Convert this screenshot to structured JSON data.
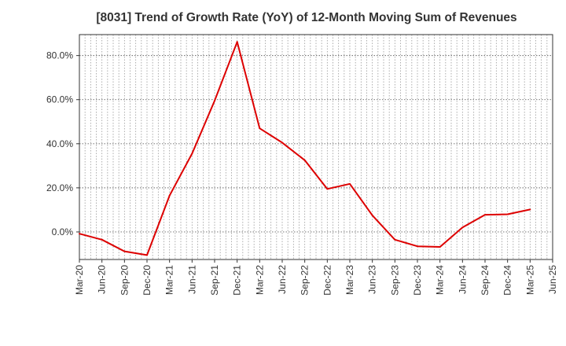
{
  "chart_data": {
    "type": "line",
    "title": "[8031]  Trend of Growth Rate (YoY) of 12-Month Moving Sum of Revenues",
    "xlabel": "",
    "ylabel": "",
    "x": [
      "Mar-20",
      "Jun-20",
      "Sep-20",
      "Dec-20",
      "Mar-21",
      "Jun-21",
      "Sep-21",
      "Dec-21",
      "Mar-22",
      "Jun-22",
      "Sep-22",
      "Dec-22",
      "Mar-23",
      "Jun-23",
      "Sep-23",
      "Dec-23",
      "Mar-24",
      "Jun-24",
      "Sep-24",
      "Dec-24",
      "Mar-25",
      "Jun-25"
    ],
    "series": [
      {
        "values": [
          -0.8,
          -3.5,
          -8.8,
          -10.5,
          16.5,
          35.5,
          59.5,
          86.2,
          47.0,
          40.5,
          32.5,
          19.5,
          21.8,
          7.5,
          -3.5,
          -6.5,
          -6.8,
          2.0,
          7.8,
          8.0,
          10.2,
          null
        ]
      }
    ],
    "y_ticks": [
      "0.0%",
      "20.0%",
      "40.0%",
      "60.0%",
      "80.0%"
    ],
    "y_tick_values": [
      0,
      20,
      40,
      60,
      80
    ],
    "ylim": [
      -12.5,
      89.5
    ],
    "grid": true,
    "line_color": "#dd0000"
  }
}
